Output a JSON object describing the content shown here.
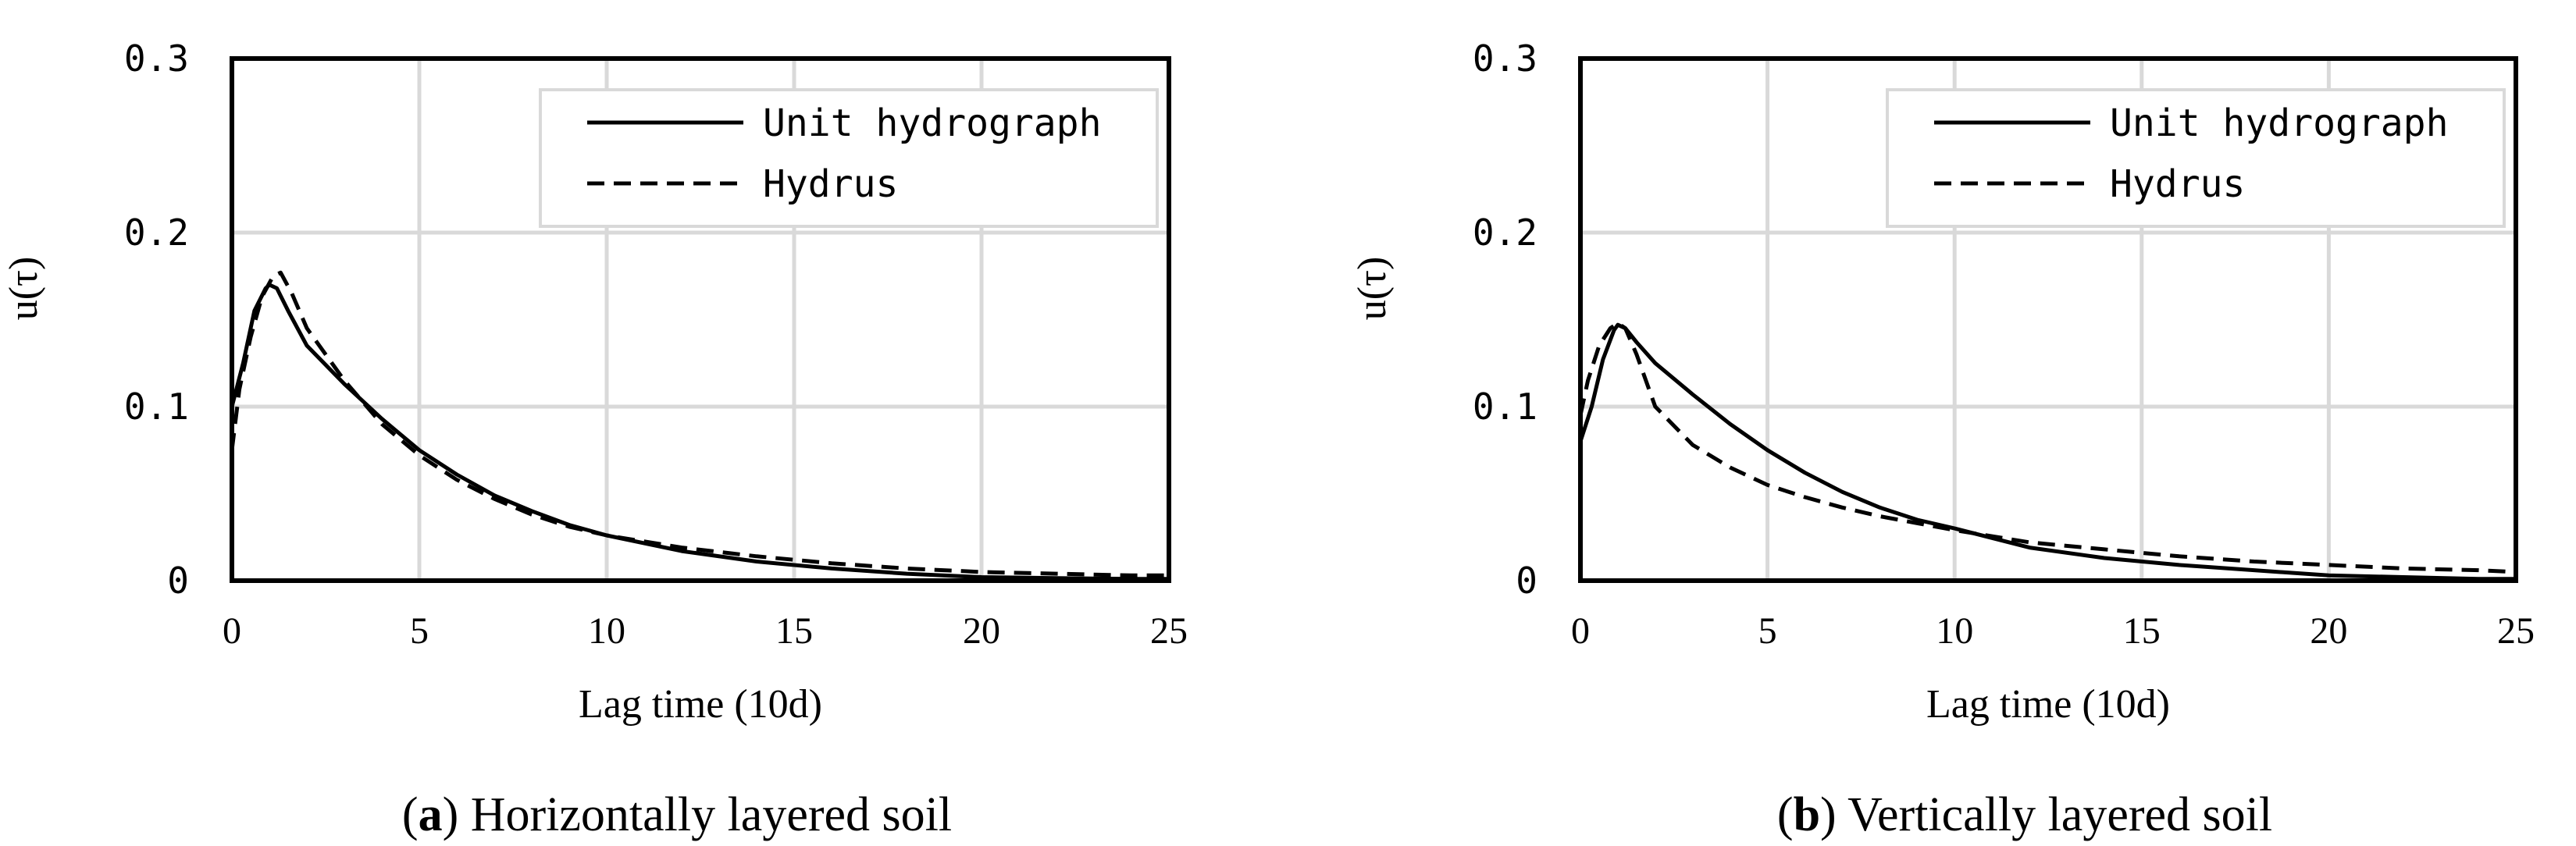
{
  "chart_data": [
    {
      "type": "line",
      "caption_letter": "a",
      "caption_text": ") Horizontally layered soil",
      "caption_paren": "(",
      "xlabel": "Lag time (10d)",
      "ylabel": "u(τ)",
      "xlim": [
        0,
        25
      ],
      "ylim": [
        0,
        0.3
      ],
      "xticks": [
        "0",
        "5",
        "10",
        "15",
        "20",
        "25"
      ],
      "yticks": [
        "0",
        "0.1",
        "0.2",
        "0.3"
      ],
      "grid": true,
      "legend_position": "top-right",
      "series": [
        {
          "name": "Unit hydrograph",
          "style": "solid",
          "x": [
            0,
            0.3,
            0.6,
            0.9,
            1.0,
            1.2,
            1.5,
            2.0,
            3,
            4,
            5,
            6,
            7,
            8,
            9,
            10,
            12,
            14,
            16,
            18,
            20,
            22,
            24,
            25
          ],
          "y": [
            0.1,
            0.125,
            0.155,
            0.168,
            0.17,
            0.168,
            0.155,
            0.135,
            0.113,
            0.093,
            0.075,
            0.061,
            0.049,
            0.04,
            0.032,
            0.026,
            0.017,
            0.011,
            0.007,
            0.004,
            0.002,
            0.0015,
            0.001,
            0.001
          ]
        },
        {
          "name": "Hydrus",
          "style": "dashed",
          "x": [
            0,
            0.2,
            0.5,
            0.8,
            1.1,
            1.3,
            1.6,
            2.0,
            3,
            4,
            5,
            6,
            7,
            8,
            9,
            10,
            12,
            14,
            16,
            18,
            20,
            22,
            24,
            25
          ],
          "y": [
            0.075,
            0.11,
            0.14,
            0.163,
            0.175,
            0.177,
            0.165,
            0.145,
            0.115,
            0.09,
            0.072,
            0.058,
            0.047,
            0.038,
            0.031,
            0.026,
            0.019,
            0.014,
            0.01,
            0.007,
            0.005,
            0.004,
            0.003,
            0.003
          ]
        }
      ]
    },
    {
      "type": "line",
      "caption_letter": "b",
      "caption_text": ") Vertically layered soil",
      "caption_paren": "(",
      "xlabel": "Lag time (10d)",
      "ylabel": "u(τ)",
      "xlim": [
        0,
        25
      ],
      "ylim": [
        0,
        0.3
      ],
      "xticks": [
        "0",
        "5",
        "10",
        "15",
        "20",
        "25"
      ],
      "yticks": [
        "0",
        "0.1",
        "0.2",
        "0.3"
      ],
      "grid": true,
      "legend_position": "top-right",
      "series": [
        {
          "name": "Unit hydrograph",
          "style": "solid",
          "x": [
            0,
            0.3,
            0.6,
            0.9,
            1.0,
            1.2,
            1.5,
            2.0,
            3,
            4,
            5,
            6,
            7,
            8,
            9,
            10,
            12,
            14,
            16,
            18,
            20,
            22,
            24,
            25
          ],
          "y": [
            0.08,
            0.1,
            0.127,
            0.144,
            0.147,
            0.145,
            0.137,
            0.125,
            0.107,
            0.09,
            0.075,
            0.062,
            0.051,
            0.042,
            0.035,
            0.03,
            0.019,
            0.013,
            0.009,
            0.006,
            0.003,
            0.002,
            0.001,
            0.001
          ]
        },
        {
          "name": "Hydrus",
          "style": "dashed",
          "x": [
            0,
            0.2,
            0.5,
            0.8,
            1.0,
            1.2,
            1.5,
            2.0,
            3,
            4,
            5,
            6,
            7,
            8,
            9,
            10,
            12,
            14,
            16,
            18,
            20,
            22,
            24,
            25
          ],
          "y": [
            0.095,
            0.115,
            0.135,
            0.145,
            0.148,
            0.145,
            0.13,
            0.1,
            0.078,
            0.065,
            0.055,
            0.048,
            0.042,
            0.037,
            0.033,
            0.029,
            0.022,
            0.018,
            0.014,
            0.011,
            0.009,
            0.007,
            0.006,
            0.005
          ]
        }
      ]
    }
  ]
}
